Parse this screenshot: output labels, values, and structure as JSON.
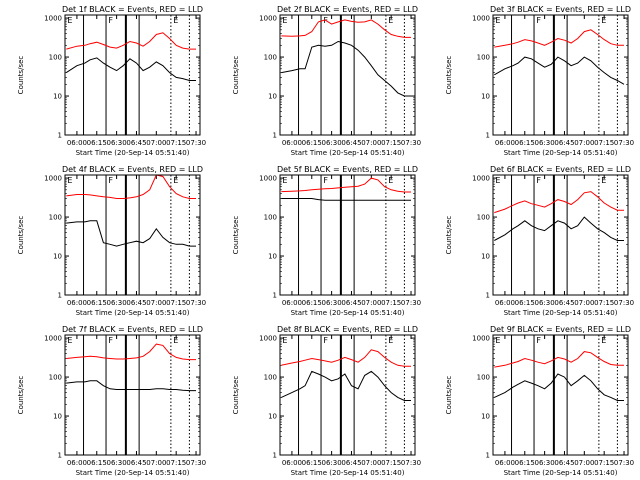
{
  "figure": {
    "xlabel": "Start Time (20-Sep-14 05:51:40)",
    "ylabel": "Counts/sec",
    "x_ticks": [
      "06:00",
      "06:15",
      "06:30",
      "06:45",
      "07:00",
      "07:15",
      "07:30"
    ],
    "y_ticks": [
      "1",
      "10",
      "100",
      "1000"
    ],
    "region_labels": [
      "E",
      "F",
      "E"
    ],
    "colors": {
      "events": "#000000",
      "lld": "#ff0000",
      "axis": "#000000"
    }
  },
  "chart_data": [
    {
      "type": "line",
      "title": "Det 1f BLACK = Events, RED = LLD",
      "xlabel": "Start Time (20-Sep-14 05:51:40)",
      "ylabel": "Counts/sec",
      "ylog": true,
      "ylim": [
        1,
        1200
      ],
      "x": [
        "05:52",
        "06:00",
        "06:06",
        "06:10",
        "06:15",
        "06:20",
        "06:25",
        "06:30",
        "06:35",
        "06:40",
        "06:45",
        "06:50",
        "06:55",
        "07:00",
        "07:05",
        "07:10",
        "07:15",
        "07:20",
        "07:25",
        "07:30"
      ],
      "series": [
        {
          "name": "Events",
          "color": "#000000",
          "values": [
            40,
            60,
            70,
            85,
            95,
            70,
            55,
            45,
            60,
            90,
            70,
            45,
            55,
            75,
            60,
            40,
            30,
            28,
            25,
            25
          ]
        },
        {
          "name": "LLD",
          "color": "#ff0000",
          "values": [
            160,
            190,
            200,
            220,
            240,
            210,
            180,
            170,
            200,
            250,
            230,
            190,
            250,
            380,
            420,
            300,
            200,
            170,
            160,
            160
          ]
        }
      ]
    },
    {
      "type": "line",
      "title": "Det 2f BLACK = Events, RED = LLD",
      "xlabel": "Start Time (20-Sep-14 05:51:40)",
      "ylabel": "Counts/sec",
      "ylog": true,
      "ylim": [
        1,
        1200
      ],
      "x": [
        "05:52",
        "06:00",
        "06:06",
        "06:10",
        "06:15",
        "06:20",
        "06:25",
        "06:30",
        "06:35",
        "06:40",
        "06:45",
        "06:50",
        "06:55",
        "07:00",
        "07:05",
        "07:10",
        "07:15",
        "07:20",
        "07:25",
        "07:30"
      ],
      "series": [
        {
          "name": "Events",
          "color": "#000000",
          "values": [
            40,
            45,
            50,
            50,
            180,
            200,
            190,
            200,
            250,
            230,
            200,
            150,
            100,
            60,
            35,
            25,
            18,
            12,
            10,
            10
          ]
        },
        {
          "name": "LLD",
          "color": "#ff0000",
          "values": [
            350,
            340,
            350,
            360,
            450,
            800,
            900,
            700,
            800,
            900,
            820,
            780,
            800,
            900,
            700,
            500,
            380,
            340,
            320,
            320
          ]
        }
      ]
    },
    {
      "type": "line",
      "title": "Det 3f BLACK = Events, RED = LLD",
      "xlabel": "Start Time (20-Sep-14 05:51:40)",
      "ylabel": "Counts/sec",
      "ylog": true,
      "ylim": [
        1,
        1200
      ],
      "x": [
        "05:52",
        "06:00",
        "06:06",
        "06:10",
        "06:15",
        "06:20",
        "06:25",
        "06:30",
        "06:35",
        "06:40",
        "06:45",
        "06:50",
        "06:55",
        "07:00",
        "07:05",
        "07:10",
        "07:15",
        "07:20",
        "07:25",
        "07:30"
      ],
      "series": [
        {
          "name": "Events",
          "color": "#000000",
          "values": [
            35,
            50,
            60,
            70,
            100,
            90,
            70,
            55,
            65,
            100,
            80,
            60,
            70,
            100,
            80,
            55,
            40,
            30,
            25,
            20
          ]
        },
        {
          "name": "LLD",
          "color": "#ff0000",
          "values": [
            180,
            200,
            220,
            240,
            280,
            260,
            230,
            200,
            240,
            300,
            270,
            230,
            300,
            450,
            500,
            380,
            280,
            220,
            200,
            200
          ]
        }
      ]
    },
    {
      "type": "line",
      "title": "Det 4f BLACK = Events, RED = LLD",
      "xlabel": "Start Time (20-Sep-14 05:51:40)",
      "ylabel": "Counts/sec",
      "ylog": true,
      "ylim": [
        1,
        1200
      ],
      "x": [
        "05:52",
        "06:00",
        "06:06",
        "06:10",
        "06:15",
        "06:20",
        "06:25",
        "06:30",
        "06:35",
        "06:40",
        "06:45",
        "06:50",
        "06:55",
        "07:00",
        "07:05",
        "07:10",
        "07:15",
        "07:20",
        "07:25",
        "07:30"
      ],
      "series": [
        {
          "name": "Events",
          "color": "#000000",
          "values": [
            70,
            75,
            75,
            80,
            80,
            22,
            20,
            18,
            20,
            22,
            24,
            22,
            28,
            50,
            30,
            22,
            20,
            20,
            18,
            18
          ]
        },
        {
          "name": "LLD",
          "color": "#ff0000",
          "values": [
            350,
            380,
            380,
            370,
            350,
            330,
            320,
            300,
            300,
            310,
            330,
            380,
            500,
            1200,
            1100,
            600,
            400,
            330,
            300,
            300
          ]
        }
      ]
    },
    {
      "type": "line",
      "title": "Det 5f BLACK = Events, RED = LLD",
      "xlabel": "Start Time (20-Sep-14 05:51:40)",
      "ylabel": "Counts/sec",
      "ylog": true,
      "ylim": [
        1,
        1200
      ],
      "x": [
        "05:52",
        "06:00",
        "06:06",
        "06:10",
        "06:15",
        "06:20",
        "06:25",
        "06:30",
        "06:35",
        "06:40",
        "06:45",
        "06:50",
        "06:55",
        "07:00",
        "07:05",
        "07:10",
        "07:15",
        "07:20",
        "07:25",
        "07:30"
      ],
      "series": [
        {
          "name": "Events",
          "color": "#000000",
          "values": [
            300,
            300,
            300,
            300,
            300,
            280,
            270,
            270,
            270,
            270,
            270,
            270,
            270,
            270,
            270,
            270,
            270,
            270,
            270,
            270
          ]
        },
        {
          "name": "LLD",
          "color": "#ff0000",
          "values": [
            450,
            460,
            470,
            480,
            500,
            520,
            530,
            540,
            560,
            580,
            600,
            620,
            700,
            1000,
            900,
            600,
            500,
            460,
            440,
            440
          ]
        }
      ]
    },
    {
      "type": "line",
      "title": "Det 6f BLACK = Events, RED = LLD",
      "xlabel": "Start Time (20-Sep-14 05:51:40)",
      "ylabel": "Counts/sec",
      "ylog": true,
      "ylim": [
        1,
        1200
      ],
      "x": [
        "05:52",
        "06:00",
        "06:06",
        "06:10",
        "06:15",
        "06:20",
        "06:25",
        "06:30",
        "06:35",
        "06:40",
        "06:45",
        "06:50",
        "06:55",
        "07:00",
        "07:05",
        "07:10",
        "07:15",
        "07:20",
        "07:25",
        "07:30"
      ],
      "series": [
        {
          "name": "Events",
          "color": "#000000",
          "values": [
            25,
            35,
            50,
            60,
            80,
            60,
            50,
            45,
            60,
            80,
            70,
            50,
            60,
            100,
            70,
            50,
            40,
            30,
            25,
            25
          ]
        },
        {
          "name": "LLD",
          "color": "#ff0000",
          "values": [
            130,
            160,
            200,
            230,
            260,
            220,
            200,
            180,
            220,
            280,
            250,
            210,
            280,
            420,
            450,
            330,
            230,
            180,
            150,
            150
          ]
        }
      ]
    },
    {
      "type": "line",
      "title": "Det 7f BLACK = Events, RED = LLD",
      "xlabel": "Start Time (20-Sep-14 05:51:40)",
      "ylabel": "Counts/sec",
      "ylog": true,
      "ylim": [
        1,
        1200
      ],
      "x": [
        "05:52",
        "06:00",
        "06:06",
        "06:10",
        "06:15",
        "06:20",
        "06:25",
        "06:30",
        "06:35",
        "06:40",
        "06:45",
        "06:50",
        "06:55",
        "07:00",
        "07:05",
        "07:10",
        "07:15",
        "07:20",
        "07:25",
        "07:30"
      ],
      "series": [
        {
          "name": "Events",
          "color": "#000000",
          "values": [
            70,
            75,
            75,
            80,
            80,
            60,
            50,
            48,
            48,
            48,
            48,
            48,
            48,
            50,
            50,
            48,
            48,
            46,
            45,
            45
          ]
        },
        {
          "name": "LLD",
          "color": "#ff0000",
          "values": [
            300,
            320,
            330,
            340,
            330,
            310,
            300,
            290,
            290,
            300,
            310,
            340,
            450,
            700,
            650,
            400,
            320,
            290,
            280,
            280
          ]
        }
      ]
    },
    {
      "type": "line",
      "title": "Det 8f BLACK = Events, RED = LLD",
      "xlabel": "Start Time (20-Sep-14 05:51:40)",
      "ylabel": "Counts/sec",
      "ylog": true,
      "ylim": [
        1,
        1200
      ],
      "x": [
        "05:52",
        "06:00",
        "06:06",
        "06:10",
        "06:15",
        "06:20",
        "06:25",
        "06:30",
        "06:35",
        "06:40",
        "06:45",
        "06:50",
        "06:55",
        "07:00",
        "07:05",
        "07:10",
        "07:15",
        "07:20",
        "07:25",
        "07:30"
      ],
      "series": [
        {
          "name": "Events",
          "color": "#000000",
          "values": [
            30,
            40,
            50,
            60,
            140,
            120,
            100,
            80,
            90,
            120,
            60,
            50,
            110,
            140,
            100,
            60,
            40,
            30,
            25,
            25
          ]
        },
        {
          "name": "LLD",
          "color": "#ff0000",
          "values": [
            200,
            230,
            250,
            270,
            300,
            280,
            260,
            240,
            270,
            320,
            280,
            240,
            320,
            500,
            450,
            320,
            240,
            200,
            190,
            190
          ]
        }
      ]
    },
    {
      "type": "line",
      "title": "Det 9f BLACK = Events, RED = LLD",
      "xlabel": "Start Time (20-Sep-14 05:51:40)",
      "ylabel": "Counts/sec",
      "ylog": true,
      "ylim": [
        1,
        1200
      ],
      "x": [
        "05:52",
        "06:00",
        "06:06",
        "06:10",
        "06:15",
        "06:20",
        "06:25",
        "06:30",
        "06:35",
        "06:40",
        "06:45",
        "06:50",
        "06:55",
        "07:00",
        "07:05",
        "07:10",
        "07:15",
        "07:20",
        "07:25",
        "07:30"
      ],
      "series": [
        {
          "name": "Events",
          "color": "#000000",
          "values": [
            30,
            40,
            55,
            65,
            80,
            70,
            60,
            50,
            70,
            120,
            100,
            60,
            80,
            110,
            80,
            50,
            35,
            30,
            25,
            25
          ]
        },
        {
          "name": "LLD",
          "color": "#ff0000",
          "values": [
            180,
            200,
            230,
            250,
            300,
            270,
            240,
            220,
            260,
            320,
            290,
            240,
            300,
            450,
            420,
            320,
            250,
            210,
            200,
            200
          ]
        }
      ]
    }
  ]
}
